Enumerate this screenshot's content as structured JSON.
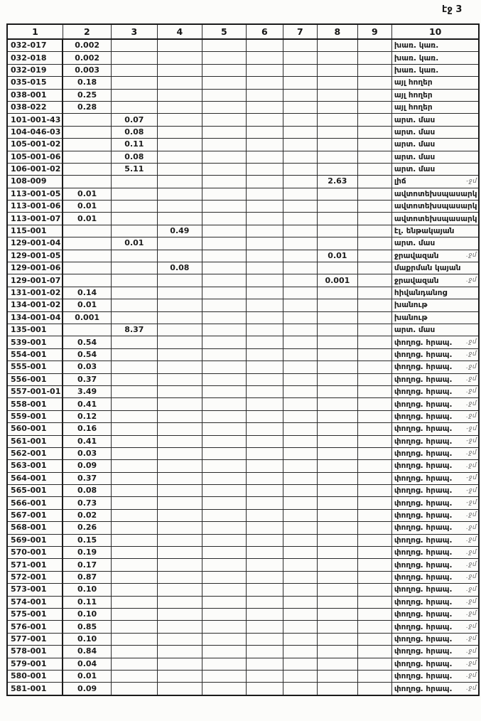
{
  "page": {
    "label": "էջ 3"
  },
  "table": {
    "headers": [
      "1",
      "2",
      "3",
      "4",
      "5",
      "6",
      "7",
      "8",
      "9",
      "10"
    ],
    "rows": [
      {
        "cells": [
          "032-017",
          "0.002",
          "",
          "",
          "",
          "",
          "",
          "",
          "",
          "խառ. կառ."
        ],
        "mark": ""
      },
      {
        "cells": [
          "032-018",
          "0.002",
          "",
          "",
          "",
          "",
          "",
          "",
          "",
          "խառ. կառ."
        ],
        "mark": ""
      },
      {
        "cells": [
          "032-019",
          "0.003",
          "",
          "",
          "",
          "",
          "",
          "",
          "",
          "խառ. կառ."
        ],
        "mark": ""
      },
      {
        "cells": [
          "035-015",
          "0.18",
          "",
          "",
          "",
          "",
          "",
          "",
          "",
          "այլ հողեր"
        ],
        "mark": ""
      },
      {
        "cells": [
          "038-001",
          "0.25",
          "",
          "",
          "",
          "",
          "",
          "",
          "",
          "այլ հողեր"
        ],
        "mark": ""
      },
      {
        "cells": [
          "038-022",
          "0.28",
          "",
          "",
          "",
          "",
          "",
          "",
          "",
          "այլ հողեր"
        ],
        "mark": ""
      },
      {
        "cells": [
          "101-001-43",
          "",
          "0.07",
          "",
          "",
          "",
          "",
          "",
          "",
          "արտ. մաս"
        ],
        "mark": ""
      },
      {
        "cells": [
          "104-046-03",
          "",
          "0.08",
          "",
          "",
          "",
          "",
          "",
          "",
          "արտ. մաս"
        ],
        "mark": ""
      },
      {
        "cells": [
          "105-001-02",
          "",
          "0.11",
          "",
          "",
          "",
          "",
          "",
          "",
          "արտ. մաս"
        ],
        "mark": ""
      },
      {
        "cells": [
          "105-001-06",
          "",
          "0.08",
          "",
          "",
          "",
          "",
          "",
          "",
          "արտ. մաս"
        ],
        "mark": ""
      },
      {
        "cells": [
          "106-001-02",
          "",
          "5.11",
          "",
          "",
          "",
          "",
          "",
          "",
          "արտ. մաս"
        ],
        "mark": ""
      },
      {
        "cells": [
          "108-009",
          "",
          "",
          "",
          "",
          "",
          "",
          "2.63",
          "",
          "լիճ"
        ],
        "mark": "-ջմ"
      },
      {
        "cells": [
          "113-001-05",
          "0.01",
          "",
          "",
          "",
          "",
          "",
          "",
          "",
          "ավտոտեխսպասարկ"
        ],
        "mark": ""
      },
      {
        "cells": [
          "113-001-06",
          "0.01",
          "",
          "",
          "",
          "",
          "",
          "",
          "",
          "ավտոտեխսպասարկ"
        ],
        "mark": ""
      },
      {
        "cells": [
          "113-001-07",
          "0.01",
          "",
          "",
          "",
          "",
          "",
          "",
          "",
          "ավտոտեխսպասարկ"
        ],
        "mark": ""
      },
      {
        "cells": [
          "115-001",
          "",
          "",
          "0.49",
          "",
          "",
          "",
          "",
          "",
          "էլ. ենթակայան"
        ],
        "mark": ""
      },
      {
        "cells": [
          "129-001-04",
          "",
          "0.01",
          "",
          "",
          "",
          "",
          "",
          "",
          "արտ. մաս"
        ],
        "mark": ""
      },
      {
        "cells": [
          "129-001-05",
          "",
          "",
          "",
          "",
          "",
          "",
          "0.01",
          "",
          "ջրավազան"
        ],
        "mark": ".ջմ"
      },
      {
        "cells": [
          "129-001-06",
          "",
          "",
          "0.08",
          "",
          "",
          "",
          "",
          "",
          "մաքրման կայան"
        ],
        "mark": ""
      },
      {
        "cells": [
          "129-001-07",
          "",
          "",
          "",
          "",
          "",
          "",
          "0.001",
          "",
          "ջրավազան"
        ],
        "mark": ".ջմ"
      },
      {
        "cells": [
          "131-001-02",
          "0.14",
          "",
          "",
          "",
          "",
          "",
          "",
          "",
          "հիվանդանոց"
        ],
        "mark": ""
      },
      {
        "cells": [
          "134-001-02",
          "0.01",
          "",
          "",
          "",
          "",
          "",
          "",
          "",
          "խանութ"
        ],
        "mark": ""
      },
      {
        "cells": [
          "134-001-04",
          "0.001",
          "",
          "",
          "",
          "",
          "",
          "",
          "",
          "խանութ"
        ],
        "mark": ""
      },
      {
        "cells": [
          "135-001",
          "",
          "8.37",
          "",
          "",
          "",
          "",
          "",
          "",
          "արտ. մաս"
        ],
        "mark": ""
      },
      {
        "cells": [
          "539-001",
          "0.54",
          "",
          "",
          "",
          "",
          "",
          "",
          "",
          "փողոց. հրապ."
        ],
        "mark": ".ջմ"
      },
      {
        "cells": [
          "554-001",
          "0.54",
          "",
          "",
          "",
          "",
          "",
          "",
          "",
          "փողոց. հրապ."
        ],
        "mark": ".ջմ"
      },
      {
        "cells": [
          "555-001",
          "0.03",
          "",
          "",
          "",
          "",
          "",
          "",
          "",
          "փողոց. հրապ."
        ],
        "mark": ".ջմ"
      },
      {
        "cells": [
          "556-001",
          "0.37",
          "",
          "",
          "",
          "",
          "",
          "",
          "",
          "փողոց. հրապ."
        ],
        "mark": ".ջմ"
      },
      {
        "cells": [
          "557-001-01",
          "3.49",
          "",
          "",
          "",
          "",
          "",
          "",
          "",
          "փողոց. հրապ."
        ],
        "mark": ".ջմ"
      },
      {
        "cells": [
          "558-001",
          "0.41",
          "",
          "",
          "",
          "",
          "",
          "",
          "",
          "փողոց. հրապ."
        ],
        "mark": ".ջմ"
      },
      {
        "cells": [
          "559-001",
          "0.12",
          "",
          "",
          "",
          "",
          "",
          "",
          "",
          "փողոց. հրապ."
        ],
        "mark": ".ջմ"
      },
      {
        "cells": [
          "560-001",
          "0.16",
          "",
          "",
          "",
          "",
          "",
          "",
          "",
          "փողոց. հրապ."
        ],
        "mark": "-ջմ"
      },
      {
        "cells": [
          "561-001",
          "0.41",
          "",
          "",
          "",
          "",
          "",
          "",
          "",
          "փողոց. հրապ."
        ],
        "mark": "-ջմ"
      },
      {
        "cells": [
          "562-001",
          "0.03",
          "",
          "",
          "",
          "",
          "",
          "",
          "",
          "փողոց. հրապ."
        ],
        "mark": ".ջմ"
      },
      {
        "cells": [
          "563-001",
          "0.09",
          "",
          "",
          "",
          "",
          "",
          "",
          "",
          "փողոց. հրապ."
        ],
        "mark": ".ջմ"
      },
      {
        "cells": [
          "564-001",
          "0.37",
          "",
          "",
          "",
          "",
          "",
          "",
          "",
          "փողոց. հրապ."
        ],
        "mark": "-ջմ"
      },
      {
        "cells": [
          "565-001",
          "0.08",
          "",
          "",
          "",
          "",
          "",
          "",
          "",
          "փողոց. հրապ."
        ],
        "mark": "-ջմ"
      },
      {
        "cells": [
          "566-001",
          "0.73",
          "",
          "",
          "",
          "",
          "",
          "",
          "",
          "փողոց. հրապ."
        ],
        "mark": "-ջմ"
      },
      {
        "cells": [
          "567-001",
          "0.02",
          "",
          "",
          "",
          "",
          "",
          "",
          "",
          "փողոց. հրապ."
        ],
        "mark": ".ջմ"
      },
      {
        "cells": [
          "568-001",
          "0.26",
          "",
          "",
          "",
          "",
          "",
          "",
          "",
          "փողոց. հրապ."
        ],
        "mark": ".ջմ"
      },
      {
        "cells": [
          "569-001",
          "0.15",
          "",
          "",
          "",
          "",
          "",
          "",
          "",
          "փողոց. հրապ."
        ],
        "mark": ".ջմ"
      },
      {
        "cells": [
          "570-001",
          "0.19",
          "",
          "",
          "",
          "",
          "",
          "",
          "",
          "փողոց. հրապ."
        ],
        "mark": ".ջմ"
      },
      {
        "cells": [
          "571-001",
          "0.17",
          "",
          "",
          "",
          "",
          "",
          "",
          "",
          "փողոց. հրապ."
        ],
        "mark": ".ջմ"
      },
      {
        "cells": [
          "572-001",
          "0.87",
          "",
          "",
          "",
          "",
          "",
          "",
          "",
          "փողոց. հրապ."
        ],
        "mark": ".ջմ"
      },
      {
        "cells": [
          "573-001",
          "0.10",
          "",
          "",
          "",
          "",
          "",
          "",
          "",
          "փողոց. հրապ."
        ],
        "mark": ".ջմ"
      },
      {
        "cells": [
          "574-001",
          "0.11",
          "",
          "",
          "",
          "",
          "",
          "",
          "",
          "փողոց. հրապ."
        ],
        "mark": ".ջմ"
      },
      {
        "cells": [
          "575-001",
          "0.10",
          "",
          "",
          "",
          "",
          "",
          "",
          "",
          "փողոց. հրապ."
        ],
        "mark": ".ջմ"
      },
      {
        "cells": [
          "576-001",
          "0.85",
          "",
          "",
          "",
          "",
          "",
          "",
          "",
          "փողոց. հրապ."
        ],
        "mark": ".ջմ"
      },
      {
        "cells": [
          "577-001",
          "0.10",
          "",
          "",
          "",
          "",
          "",
          "",
          "",
          "փողոց. հրապ."
        ],
        "mark": ".ջմ"
      },
      {
        "cells": [
          "578-001",
          "0.84",
          "",
          "",
          "",
          "",
          "",
          "",
          "",
          "փողոց. հրապ."
        ],
        "mark": ".ջմ"
      },
      {
        "cells": [
          "579-001",
          "0.04",
          "",
          "",
          "",
          "",
          "",
          "",
          "",
          "փողոց. հրապ."
        ],
        "mark": ".ջմ"
      },
      {
        "cells": [
          "580-001",
          "0.01",
          "",
          "",
          "",
          "",
          "",
          "",
          "",
          "փողոց. հրապ."
        ],
        "mark": ".ջմ"
      },
      {
        "cells": [
          "581-001",
          "0.09",
          "",
          "",
          "",
          "",
          "",
          "",
          "",
          "փողոց. հրապ."
        ],
        "mark": ".ջմ"
      }
    ]
  }
}
